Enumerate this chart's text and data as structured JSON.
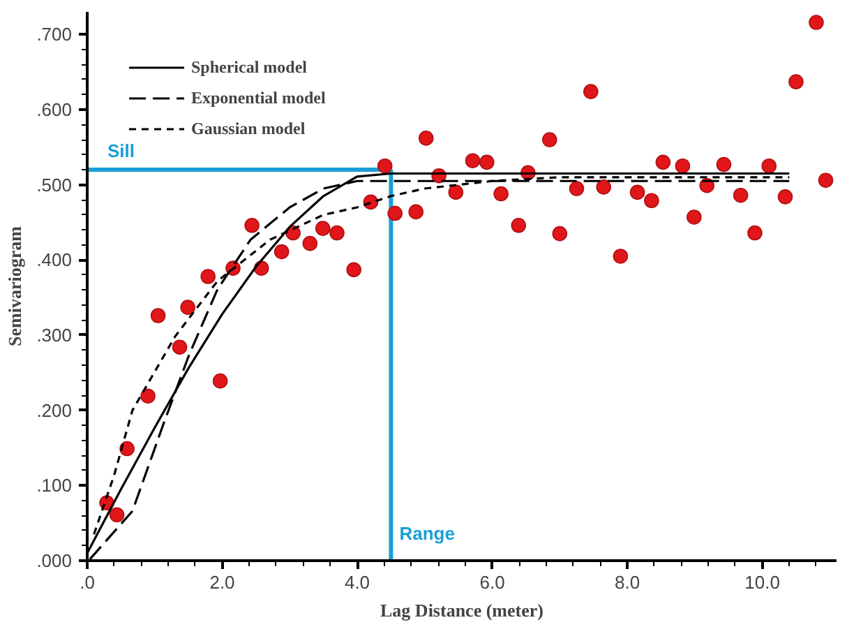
{
  "chart_data": {
    "type": "scatter",
    "xlabel": "Lag Distance (meter)",
    "ylabel": "Semivariogram",
    "xlim": [
      0,
      11.1
    ],
    "ylim": [
      0,
      0.73
    ],
    "xticks": [
      {
        "value": 0,
        "label": ".0"
      },
      {
        "value": 2,
        "label": "2.0"
      },
      {
        "value": 4,
        "label": "4.0"
      },
      {
        "value": 6,
        "label": "6.0"
      },
      {
        "value": 8,
        "label": "8.0"
      },
      {
        "value": 10,
        "label": "10.0"
      }
    ],
    "yticks": [
      {
        "value": 0,
        "label": ".000"
      },
      {
        "value": 0.1,
        "label": ".100"
      },
      {
        "value": 0.2,
        "label": ".200"
      },
      {
        "value": 0.3,
        "label": ".300"
      },
      {
        "value": 0.4,
        "label": ".400"
      },
      {
        "value": 0.5,
        "label": ".500"
      },
      {
        "value": 0.6,
        "label": ".600"
      },
      {
        "value": 0.7,
        "label": ".700"
      }
    ],
    "grid": false,
    "legend": "top left",
    "series": [
      {
        "marker": "circle",
        "color": "#e0161b",
        "x": [
          0.29,
          0.44,
          0.59,
          0.9,
          1.05,
          1.37,
          1.49,
          1.79,
          1.97,
          2.16,
          2.44,
          2.58,
          2.88,
          3.05,
          3.3,
          3.49,
          3.7,
          3.95,
          4.2,
          4.41,
          4.56,
          4.87,
          5.02,
          5.21,
          5.46,
          5.71,
          5.92,
          6.13,
          6.39,
          6.53,
          6.85,
          7.0,
          7.25,
          7.46,
          7.65,
          7.9,
          8.15,
          8.36,
          8.53,
          8.82,
          8.99,
          9.18,
          9.43,
          9.68,
          9.89,
          10.1,
          10.34,
          10.5,
          10.8,
          10.94
        ],
        "values": [
          0.077,
          0.061,
          0.149,
          0.219,
          0.326,
          0.284,
          0.337,
          0.378,
          0.239,
          0.389,
          0.446,
          0.389,
          0.411,
          0.436,
          0.422,
          0.442,
          0.436,
          0.387,
          0.477,
          0.525,
          0.462,
          0.464,
          0.562,
          0.512,
          0.49,
          0.532,
          0.53,
          0.488,
          0.446,
          0.516,
          0.56,
          0.435,
          0.495,
          0.624,
          0.497,
          0.405,
          0.49,
          0.479,
          0.53,
          0.525,
          0.457,
          0.499,
          0.527,
          0.486,
          0.436,
          0.525,
          0.484,
          0.637,
          0.716,
          0.506
        ]
      },
      {
        "type": "line",
        "name": "Spherical model",
        "color": "#000000",
        "line_style": "solid",
        "x": [
          0,
          0.5,
          1,
          1.5,
          2,
          2.5,
          3,
          3.5,
          4,
          4.5,
          10.4
        ],
        "values": [
          0.01,
          0.095,
          0.177,
          0.256,
          0.328,
          0.391,
          0.444,
          0.485,
          0.511,
          0.515,
          0.515
        ]
      },
      {
        "type": "line",
        "name": "Exponential model",
        "color": "#000000",
        "line_style": "dashed",
        "x": [
          0.04,
          0.67,
          1.13,
          1.51,
          1.93,
          2.42,
          3.0,
          3.5,
          4.0,
          4.5,
          10.4
        ],
        "values": [
          0.002,
          0.066,
          0.182,
          0.274,
          0.361,
          0.427,
          0.47,
          0.495,
          0.505,
          0.505,
          0.505
        ]
      },
      {
        "type": "line",
        "name": "Gaussian model",
        "color": "#000000",
        "line_style": "dotted",
        "x": [
          0.1,
          0.4,
          0.67,
          1.03,
          1.3,
          1.93,
          2.71,
          3.5,
          4.0,
          4.5,
          5.0,
          6.0,
          7.0,
          10.4
        ],
        "values": [
          0.035,
          0.114,
          0.2,
          0.256,
          0.298,
          0.372,
          0.427,
          0.46,
          0.47,
          0.485,
          0.495,
          0.505,
          0.51,
          0.51
        ]
      }
    ],
    "ref_lines": [
      {
        "axis": "y",
        "value": 0.52,
        "label": "Sill",
        "color": "#1a9fd6"
      },
      {
        "axis": "x",
        "value": 4.5,
        "label": "Range",
        "color": "#1a9fd6"
      }
    ]
  }
}
